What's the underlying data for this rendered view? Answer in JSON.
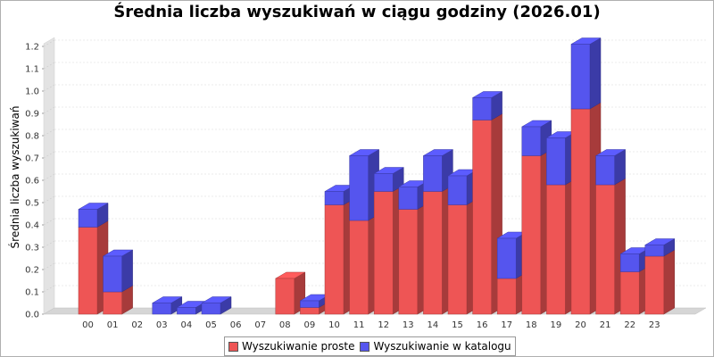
{
  "chart_data": {
    "type": "bar",
    "stacked": true,
    "three_d": true,
    "title": "Średnia liczba wyszukiwań w ciągu godziny (2026.01)",
    "xlabel": "",
    "ylabel": "Średnia liczba wyszukiwań",
    "categories": [
      "00",
      "01",
      "02",
      "03",
      "04",
      "05",
      "06",
      "07",
      "08",
      "09",
      "10",
      "11",
      "12",
      "13",
      "14",
      "15",
      "16",
      "17",
      "18",
      "19",
      "20",
      "21",
      "22",
      "23"
    ],
    "series": [
      {
        "name": "Wyszukiwanie proste",
        "color": "#ee5555",
        "values": [
          0.39,
          0.1,
          0,
          0,
          0,
          0,
          0,
          0,
          0.16,
          0.03,
          0.49,
          0.42,
          0.55,
          0.47,
          0.55,
          0.49,
          0.87,
          0.16,
          0.71,
          0.58,
          0.92,
          0.58,
          0.19,
          0.26
        ]
      },
      {
        "name": "Wyszukiwanie w katalogu",
        "color": "#5555ee",
        "values": [
          0.08,
          0.16,
          0,
          0.05,
          0.03,
          0.05,
          0,
          0,
          0,
          0.03,
          0.06,
          0.29,
          0.08,
          0.1,
          0.16,
          0.13,
          0.1,
          0.18,
          0.13,
          0.21,
          0.29,
          0.13,
          0.08,
          0.05
        ]
      }
    ],
    "ylim": [
      0,
      1.2
    ],
    "yticks": [
      "0.0",
      "0.1",
      "0.2",
      "0.3",
      "0.4",
      "0.5",
      "0.6",
      "0.7",
      "0.8",
      "0.9",
      "1.0",
      "1.1",
      "1.2"
    ],
    "grid": true,
    "legend_position": "bottom"
  }
}
